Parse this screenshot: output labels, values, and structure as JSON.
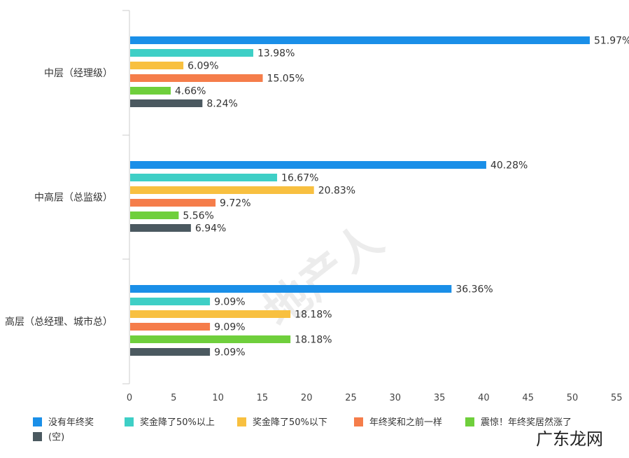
{
  "chart_data": {
    "type": "bar",
    "orientation": "horizontal",
    "title": "",
    "xlabel": "",
    "ylabel": "",
    "xlim": [
      0,
      55
    ],
    "x_ticks": [
      "0",
      "5",
      "10",
      "15",
      "20",
      "25",
      "30",
      "35",
      "40",
      "45",
      "50",
      "55"
    ],
    "grid": false,
    "legend_position": "bottom",
    "categories": [
      "中层（经理级）",
      "中高层（总监级）",
      "高层（总经理、城市总）"
    ],
    "series": [
      {
        "name": "没有年终奖",
        "color": "#1a8fe8",
        "values": [
          51.97,
          40.28,
          36.36
        ],
        "labels": [
          "51.97%",
          "40.28%",
          "36.36%"
        ]
      },
      {
        "name": "奖金降了50%以上",
        "color": "#3ecfc6",
        "values": [
          13.98,
          16.67,
          9.09
        ],
        "labels": [
          "13.98%",
          "16.67%",
          "9.09%"
        ]
      },
      {
        "name": "奖金降了50%以下",
        "color": "#f8c040",
        "values": [
          6.09,
          20.83,
          18.18
        ],
        "labels": [
          "6.09%",
          "20.83%",
          "18.18%"
        ]
      },
      {
        "name": "年终奖和之前一样",
        "color": "#f57d4a",
        "values": [
          15.05,
          9.72,
          9.09
        ],
        "labels": [
          "15.05%",
          "9.72%",
          "9.09%"
        ]
      },
      {
        "name": "震惊！年终奖居然涨了",
        "color": "#6fcf3c",
        "values": [
          4.66,
          5.56,
          18.18
        ],
        "labels": [
          "4.66%",
          "5.56%",
          "18.18%"
        ]
      },
      {
        "name": "(空)",
        "color": "#4b5960",
        "values": [
          8.24,
          6.94,
          9.09
        ],
        "labels": [
          "8.24%",
          "6.94%",
          "9.09%"
        ]
      }
    ]
  },
  "watermarks": {
    "center": "地产人",
    "brand": "广东龙网"
  }
}
